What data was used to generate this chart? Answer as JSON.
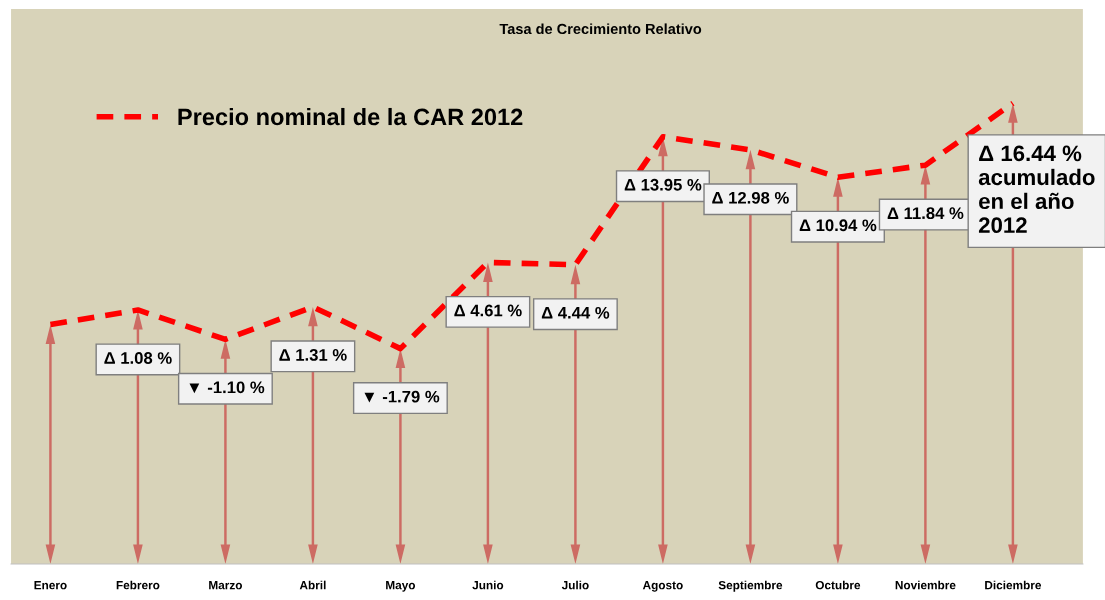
{
  "chart_data": {
    "type": "line",
    "title": "Tasa de Crecimiento Relativo",
    "categories": [
      "Enero",
      "Febrero",
      "Marzo",
      "Abril",
      "Mayo",
      "Junio",
      "Julio",
      "Agosto",
      "Septiembre",
      "Octubre",
      "Noviembre",
      "Diciembre"
    ],
    "series": [
      {
        "name": "Precio nominal de la CAR 2012",
        "color": "#ff0000",
        "values": [
          0,
          1.08,
          -1.1,
          1.31,
          -1.79,
          4.61,
          4.44,
          13.95,
          12.98,
          10.94,
          11.84,
          16.44
        ],
        "value_labels": [
          null,
          "Δ 1.08 %",
          "▼ -1.10 %",
          "Δ 1.31 %",
          "▼ -1.79 %",
          "Δ 4.61 %",
          "Δ 4.44 %",
          "Δ 13.95 %",
          "Δ 12.98 %",
          "Δ 10.94 %",
          "Δ 11.84 %",
          "Δ 16.44 %\nacumulado\nen el año\n2012"
        ]
      }
    ],
    "line_style": "dashed",
    "marker": "none",
    "legend": "top left",
    "grid": false
  }
}
